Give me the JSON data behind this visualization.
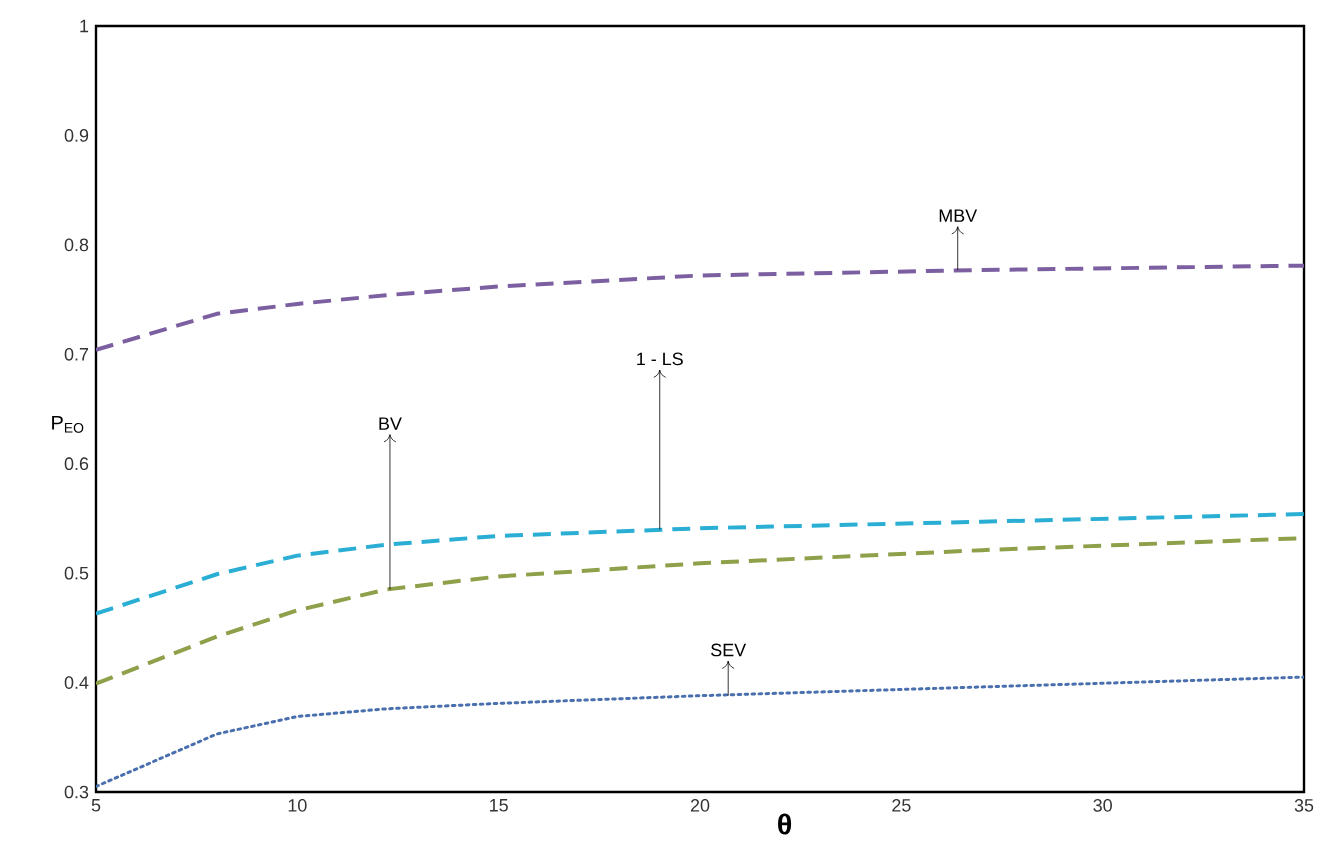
{
  "chart_data": {
    "type": "line",
    "xlabel": "θ",
    "ylabel": "P$_{EO}$",
    "xlim": [
      5,
      35
    ],
    "xticks": [
      5,
      10,
      15,
      20,
      25,
      30,
      35
    ],
    "ylim": [
      0.3,
      1
    ],
    "yticks": [
      0.3,
      0.4,
      0.5,
      0.6,
      0.7,
      0.8,
      0.9,
      1
    ],
    "x": [
      5,
      8,
      10,
      12.2,
      15,
      20,
      27,
      35
    ],
    "series": [
      {
        "color": "#7b5fa0",
        "line_style": "dashed",
        "values": [
          0.704,
          0.737,
          0.746,
          0.754,
          0.762,
          0.772,
          0.777,
          0.781
        ]
      },
      {
        "color": "#2aaed4",
        "line_style": "dashed",
        "values": [
          0.463,
          0.499,
          0.516,
          0.526,
          0.534,
          0.541,
          0.547,
          0.554
        ]
      },
      {
        "color": "#8fa04a",
        "line_style": "dashed",
        "values": [
          0.399,
          0.442,
          0.466,
          0.485,
          0.497,
          0.509,
          0.521,
          0.532
        ]
      },
      {
        "color": "#4a6fae",
        "line_style": "dotted",
        "values": [
          0.305,
          0.353,
          0.369,
          0.376,
          0.381,
          0.388,
          0.396,
          0.405
        ]
      }
    ],
    "annotations": [
      {
        "text": "MBV",
        "x": 26.4,
        "y": 0.777
      },
      {
        "text": "1 - LS",
        "x": 19.0,
        "y": 0.54
      },
      {
        "text": "BV",
        "x": 12.3,
        "y": 0.485
      },
      {
        "text": "SEV",
        "x": 20.7,
        "y": 0.388
      }
    ],
    "grid": false,
    "marker": "none"
  }
}
